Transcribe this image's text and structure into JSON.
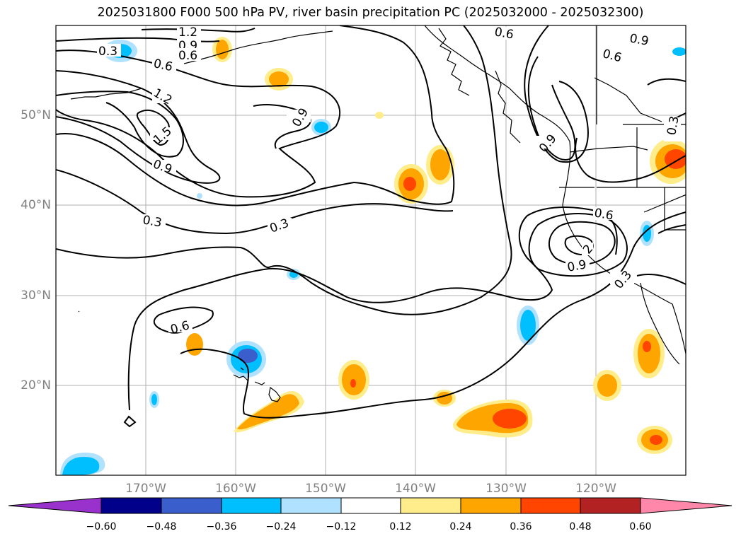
{
  "title": "2025031800 F000 500 hPa PV, river basin precipitation PC (2025032000 - 2025032300)",
  "lon_labels": [
    "170°W",
    "160°W",
    "150°W",
    "140°W",
    "130°W",
    "120°W"
  ],
  "lat_labels": [
    "50°N",
    "40°N",
    "30°N",
    "20°N"
  ],
  "contour_labels": [
    "1.2",
    "0.9",
    "0.6",
    "0.3",
    "0.6",
    "1.2",
    "1.5",
    "0.9",
    "0.9",
    "0.3",
    "0.3",
    "0.6",
    "0.6",
    "0.9",
    "0.6",
    "0.9",
    "0.3",
    "0.6",
    "2",
    "0.9",
    "0.3"
  ],
  "colorbar": {
    "ticks": [
      "−0.60",
      "−0.48",
      "−0.36",
      "−0.24",
      "−0.12",
      "0.12",
      "0.24",
      "0.36",
      "0.48",
      "0.60"
    ],
    "colors": [
      "#9932cc",
      "#00008b",
      "#3a5fcd",
      "#00bfff",
      "#b0e2ff",
      "#ffffff",
      "#ffec8b",
      "#ffa500",
      "#ff4500",
      "#b22222",
      "#ff88aa"
    ]
  }
}
